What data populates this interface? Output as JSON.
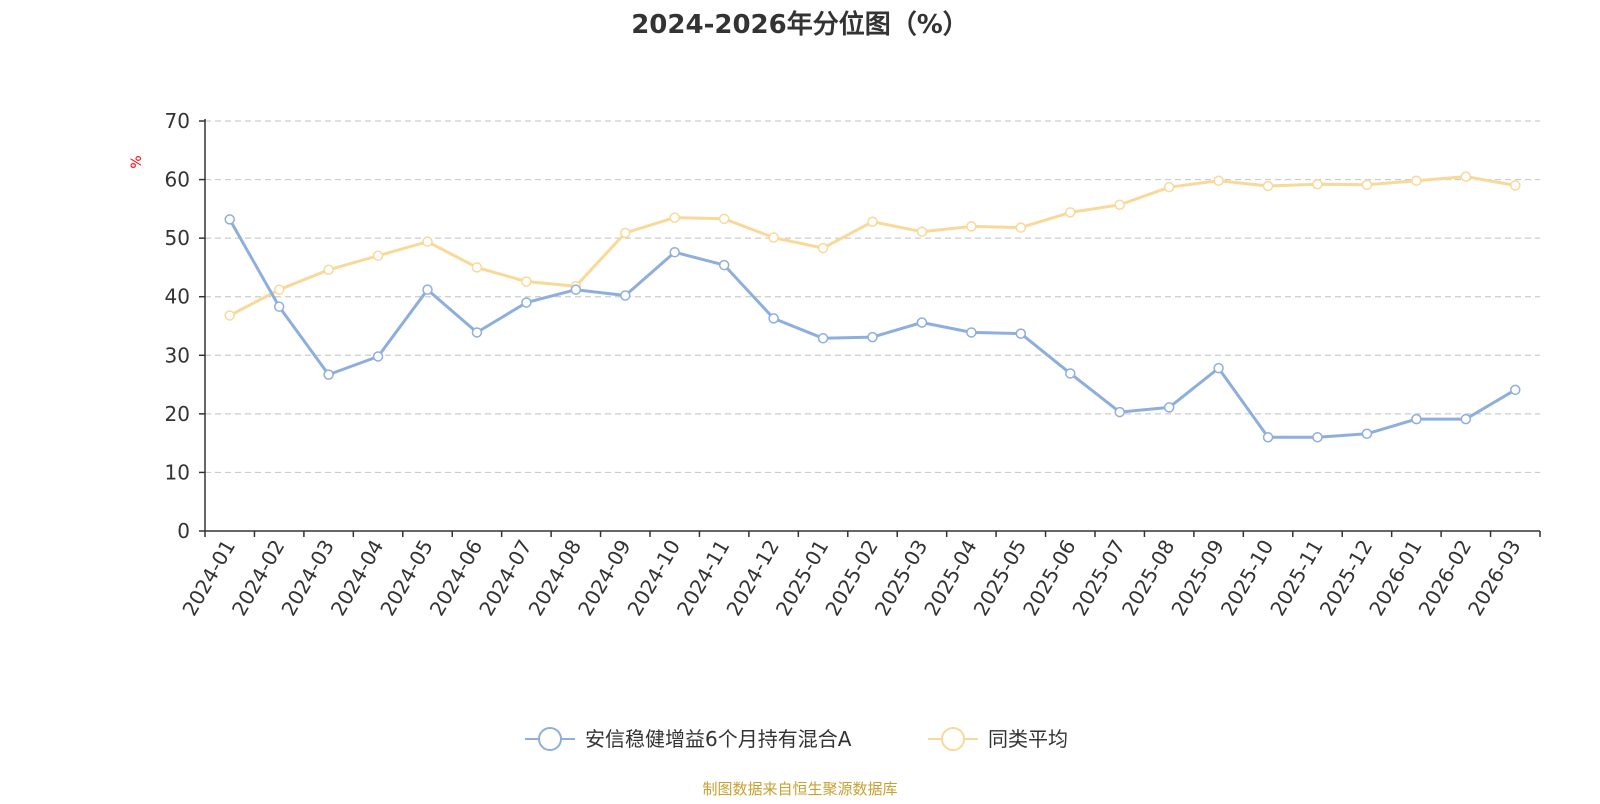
{
  "colors": {
    "series_fund": "#8eaedd",
    "series_avg": "#f9d999",
    "axis": "#333333",
    "grid": "#cccccc",
    "unit": "#ff0000",
    "source": "#c8a030",
    "title": "#333333"
  },
  "chart_data": {
    "type": "line",
    "title": "2024-2026年分位图（%）",
    "ylabel": "%",
    "xlabel": "",
    "ylim": [
      0,
      70
    ],
    "yticks": [
      0,
      10,
      20,
      30,
      40,
      50,
      60,
      70
    ],
    "grid": true,
    "legend_position": "bottom-center",
    "categories": [
      "2024-01",
      "2024-02",
      "2024-03",
      "2024-04",
      "2024-05",
      "2024-06",
      "2024-07",
      "2024-08",
      "2024-09",
      "2024-10",
      "2024-11",
      "2024-12",
      "2025-01",
      "2025-02",
      "2025-03",
      "2025-04",
      "2025-05",
      "2025-06",
      "2025-07",
      "2025-08",
      "2025-09",
      "2025-10",
      "2025-11",
      "2025-12",
      "2026-01",
      "2026-02",
      "2026-03"
    ],
    "series": [
      {
        "name": "安信稳健增益6个月持有混合A",
        "values": [
          53.2,
          38.3,
          26.7,
          29.8,
          41.2,
          33.9,
          39.0,
          41.2,
          40.2,
          47.6,
          45.4,
          36.3,
          32.9,
          33.1,
          35.6,
          33.9,
          33.7,
          26.9,
          20.3,
          21.1,
          27.8,
          16.0,
          16.0,
          16.6,
          19.1,
          19.1,
          24.1
        ]
      },
      {
        "name": "同类平均",
        "values": [
          36.8,
          41.2,
          44.6,
          47.0,
          49.4,
          45.0,
          42.6,
          41.8,
          50.9,
          53.5,
          53.3,
          50.1,
          48.3,
          52.8,
          51.1,
          52.0,
          51.8,
          54.4,
          55.7,
          58.7,
          59.8,
          58.9,
          59.2,
          59.1,
          59.8,
          60.5,
          59.0
        ]
      }
    ]
  },
  "footer": {
    "source": "制图数据来自恒生聚源数据库"
  }
}
